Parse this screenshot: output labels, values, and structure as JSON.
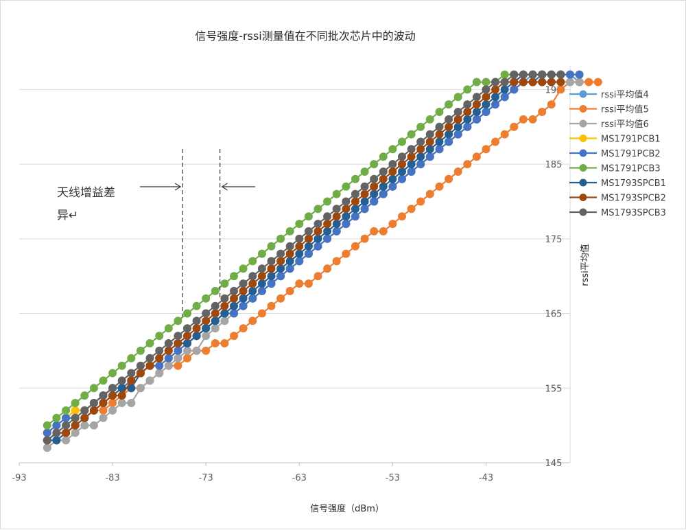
{
  "chart_data": {
    "type": "line",
    "title": "信号强度-rssi测量值在不同批次芯片中的波动",
    "xlabel": "信号强度（dBm）",
    "ylabel": "rssi平均值",
    "xlim": [
      -93,
      -34
    ],
    "ylim": [
      145,
      200
    ],
    "xticks": [
      "-93",
      "-83",
      "-73",
      "-63",
      "-53",
      "-43"
    ],
    "yticks": [
      "145",
      "155",
      "165",
      "175",
      "185",
      "195"
    ],
    "x_start": -90,
    "x_end": -37,
    "grid": "horizontal",
    "legend_position": "right",
    "annotation": {
      "text_line1": "天线增益差",
      "text_line2": "异↵",
      "line_x": [
        -75.5,
        -71.5
      ]
    },
    "series": [
      {
        "name": "rssi平均值4",
        "color": "#5b9bd5",
        "values": [
          149,
          150,
          151,
          152,
          152,
          153,
          154,
          155,
          155,
          156,
          157,
          158,
          158,
          159,
          160,
          161,
          162,
          163,
          164,
          165,
          165,
          166,
          167,
          168,
          169,
          170,
          171,
          172,
          173,
          174,
          175,
          176,
          177,
          178,
          179,
          180,
          181,
          182,
          183,
          184,
          185,
          186,
          187,
          188,
          189,
          190,
          191,
          192,
          193,
          194,
          195,
          196,
          197,
          197,
          197,
          197,
          197,
          196
        ]
      },
      {
        "name": "rssi平均值5",
        "color": "#ed7d31",
        "values": [
          148,
          149,
          149,
          150,
          151,
          152,
          152,
          153,
          154,
          155,
          155,
          156,
          157,
          158,
          158,
          159,
          160,
          160,
          161,
          161,
          162,
          163,
          164,
          165,
          166,
          167,
          168,
          169,
          169,
          170,
          171,
          172,
          173,
          174,
          175,
          176,
          176,
          177,
          178,
          179,
          180,
          181,
          182,
          183,
          184,
          185,
          186,
          187,
          188,
          189,
          190,
          191,
          191,
          192,
          193,
          195,
          196,
          196,
          196,
          196
        ]
      },
      {
        "name": "rssi平均值6",
        "color": "#a5a5a5",
        "values": [
          147,
          148,
          148,
          149,
          150,
          150,
          151,
          152,
          153,
          153,
          155,
          156,
          157,
          158,
          159,
          160,
          160,
          162,
          163,
          164,
          165,
          166,
          167,
          168,
          169,
          170,
          171,
          172,
          173,
          174,
          175,
          176,
          177,
          178,
          179,
          180,
          181,
          182,
          183,
          184,
          185,
          186,
          187,
          188,
          189,
          190,
          191,
          192,
          193,
          194,
          195,
          196,
          196,
          196,
          196,
          196,
          196,
          196
        ]
      },
      {
        "name": "MS1791PCB1",
        "color": "#ffc000",
        "values": [
          149,
          150,
          151,
          152,
          152,
          153,
          154,
          155,
          155,
          156,
          157,
          158,
          158,
          159,
          160,
          161,
          162,
          163,
          164,
          165,
          165,
          166,
          167,
          168,
          169,
          170,
          171,
          172,
          173,
          174,
          175,
          176,
          177,
          178,
          179,
          180,
          181,
          182,
          183,
          184,
          185,
          186,
          187,
          188,
          189,
          190,
          191,
          192,
          193,
          194,
          195,
          196,
          196,
          197,
          197,
          197,
          197,
          197
        ]
      },
      {
        "name": "MS1791PCB2",
        "color": "#4472c4",
        "values": [
          149,
          150,
          151,
          151,
          152,
          153,
          154,
          155,
          155,
          156,
          157,
          158,
          158,
          159,
          160,
          161,
          162,
          163,
          164,
          165,
          165,
          166,
          167,
          168,
          169,
          170,
          171,
          172,
          173,
          174,
          175,
          176,
          177,
          178,
          179,
          180,
          181,
          182,
          183,
          184,
          185,
          186,
          187,
          188,
          189,
          190,
          191,
          192,
          193,
          194,
          195,
          196,
          196,
          197,
          197,
          197,
          197,
          197
        ]
      },
      {
        "name": "MS1791PCB3",
        "color": "#70ad47",
        "values": [
          150,
          151,
          152,
          153,
          154,
          155,
          156,
          157,
          158,
          159,
          160,
          161,
          162,
          163,
          164,
          165,
          166,
          167,
          168,
          169,
          170,
          171,
          172,
          173,
          174,
          175,
          176,
          177,
          178,
          179,
          180,
          181,
          182,
          183,
          184,
          185,
          186,
          187,
          188,
          189,
          190,
          191,
          192,
          193,
          194,
          195,
          196,
          196,
          196,
          197,
          197,
          197,
          197,
          197
        ]
      },
      {
        "name": "MS1793SPCB1",
        "color": "#255e91",
        "values": [
          148,
          148,
          149,
          150,
          151,
          152,
          153,
          154,
          155,
          155,
          157,
          158,
          159,
          160,
          161,
          161,
          162,
          163,
          164,
          165,
          166,
          167,
          168,
          169,
          170,
          171,
          172,
          173,
          174,
          175,
          176,
          177,
          178,
          179,
          180,
          181,
          182,
          183,
          184,
          185,
          186,
          187,
          188,
          189,
          190,
          191,
          192,
          193,
          194,
          195,
          196,
          197,
          197,
          197,
          197,
          197
        ]
      },
      {
        "name": "MS1793SPCB2",
        "color": "#9e480e",
        "values": [
          148,
          149,
          149,
          150,
          151,
          152,
          153,
          154,
          154,
          156,
          157,
          158,
          159,
          160,
          161,
          162,
          163,
          164,
          165,
          166,
          167,
          168,
          169,
          170,
          171,
          172,
          173,
          174,
          175,
          176,
          177,
          178,
          179,
          180,
          181,
          182,
          183,
          184,
          185,
          186,
          187,
          188,
          189,
          190,
          191,
          192,
          193,
          194,
          195,
          196,
          196,
          196,
          196,
          196,
          196,
          196
        ]
      },
      {
        "name": "MS1793SPCB3",
        "color": "#636363",
        "values": [
          148,
          149,
          150,
          151,
          152,
          153,
          154,
          155,
          156,
          157,
          158,
          159,
          160,
          161,
          162,
          163,
          164,
          165,
          166,
          167,
          168,
          169,
          170,
          171,
          172,
          173,
          174,
          175,
          176,
          177,
          178,
          179,
          180,
          181,
          182,
          183,
          184,
          185,
          186,
          187,
          188,
          189,
          190,
          191,
          192,
          193,
          194,
          195,
          196,
          196,
          197,
          197,
          197,
          197,
          197,
          197
        ]
      }
    ]
  }
}
